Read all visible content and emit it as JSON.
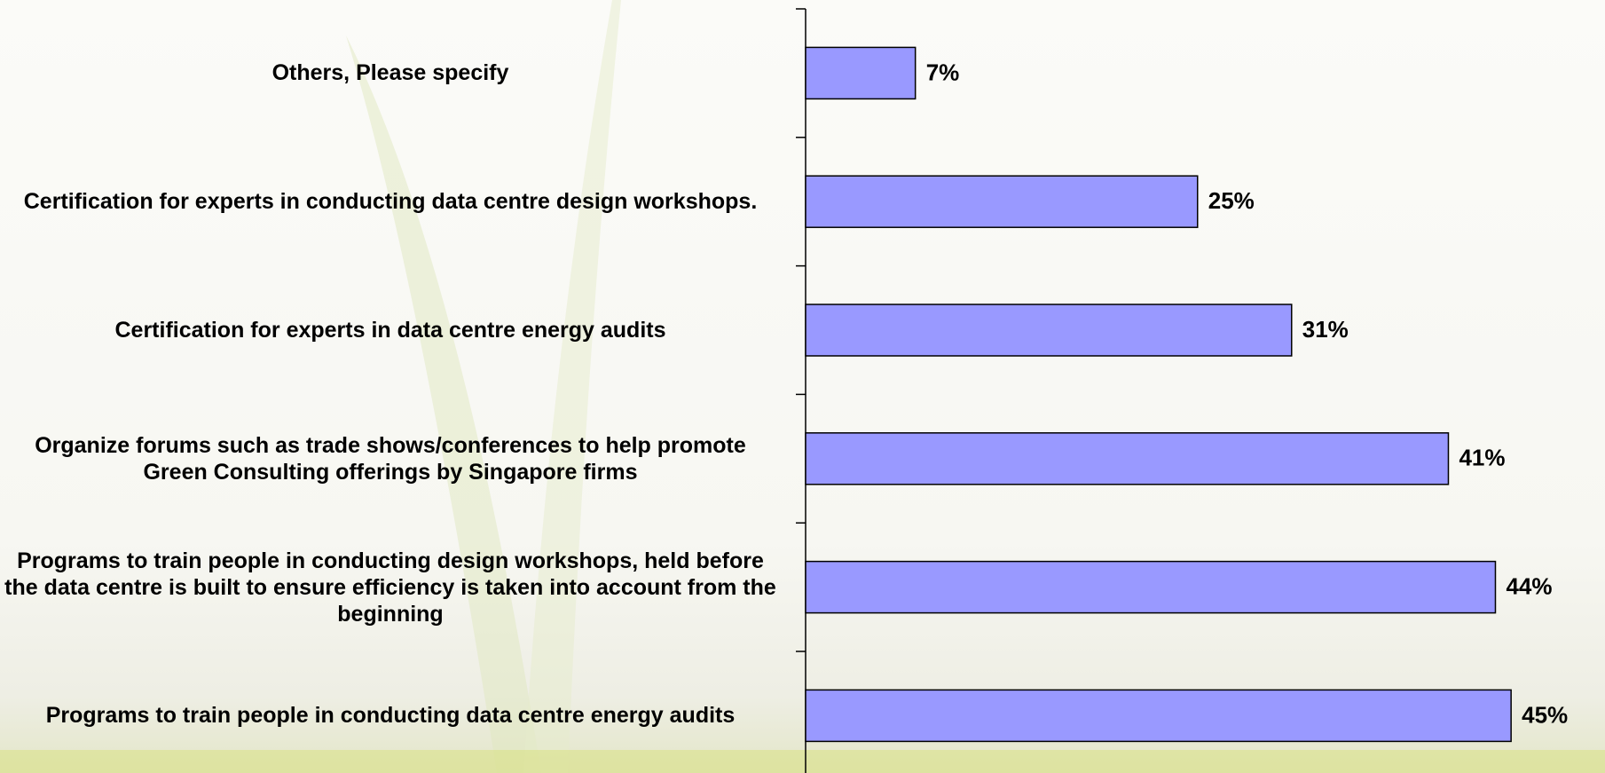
{
  "chart_data": {
    "type": "bar",
    "orientation": "horizontal",
    "categories": [
      "Others, Please specify",
      "Certification for experts in conducting data centre design workshops.",
      "Certification for experts in data centre energy audits",
      "Organize forums such as trade shows/conferences to help promote Green Consulting offerings by Singapore firms",
      "Programs to train people in conducting design workshops, held before the data centre is built to ensure efficiency is taken into account from the beginning",
      "Programs to train people in conducting data centre energy audits"
    ],
    "values": [
      7,
      25,
      31,
      41,
      44,
      45
    ],
    "value_labels": [
      "7%",
      "25%",
      "31%",
      "41%",
      "44%",
      "45%"
    ],
    "color": "#9999ff"
  }
}
